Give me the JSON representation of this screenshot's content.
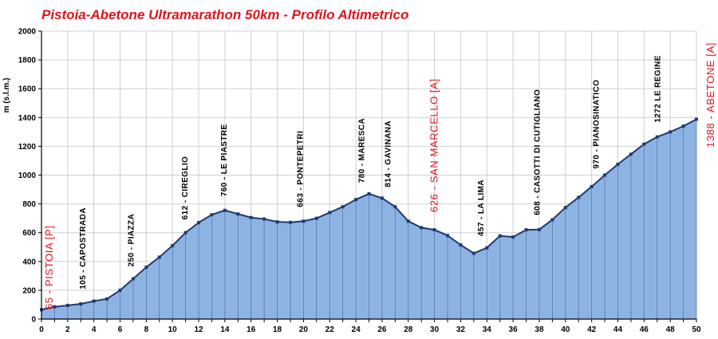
{
  "chart_data": {
    "type": "area",
    "title": "Pistoia-Abetone Ultramarathon 50km - Profilo Altimetrico",
    "ylabel": "m (s.l.m.)",
    "xlabel": "",
    "xlim": [
      0,
      50
    ],
    "ylim": [
      0,
      2000
    ],
    "xticks": [
      0,
      2,
      4,
      6,
      8,
      10,
      12,
      14,
      16,
      18,
      20,
      22,
      24,
      26,
      28,
      30,
      32,
      34,
      36,
      38,
      40,
      42,
      44,
      46,
      48,
      50
    ],
    "yticks": [
      0,
      200,
      400,
      600,
      800,
      1000,
      1200,
      1400,
      1600,
      1800,
      2000
    ],
    "grid": true,
    "x": [
      0,
      1,
      2,
      3,
      4,
      5,
      6,
      7,
      8,
      9,
      10,
      11,
      12,
      13,
      14,
      15,
      16,
      17,
      18,
      19,
      20,
      21,
      22,
      23,
      24,
      25,
      26,
      27,
      28,
      29,
      30,
      31,
      32,
      33,
      34,
      35,
      36,
      37,
      38,
      39,
      40,
      41,
      42,
      43,
      44,
      45,
      46,
      47,
      48,
      49,
      50
    ],
    "y": [
      65,
      85,
      95,
      105,
      125,
      140,
      200,
      280,
      360,
      430,
      510,
      600,
      670,
      725,
      755,
      730,
      705,
      695,
      675,
      672,
      680,
      700,
      740,
      780,
      830,
      870,
      840,
      780,
      680,
      635,
      620,
      580,
      515,
      457,
      495,
      578,
      570,
      620,
      622,
      690,
      775,
      845,
      920,
      1000,
      1075,
      1145,
      1215,
      1265,
      1300,
      1340,
      1388
    ],
    "annotations": [
      {
        "x": 0.6,
        "label": "65 - PISTOIA  [P]",
        "color": "#e0141e",
        "big": true
      },
      {
        "x": 3.1,
        "label": "105 - CAPOSTRADA",
        "color": "#000000",
        "big": false
      },
      {
        "x": 6.8,
        "label": "250 - PIAZZA",
        "color": "#000000",
        "big": false
      },
      {
        "x": 10.9,
        "label": "612 - CIREGLIO",
        "color": "#000000",
        "big": false
      },
      {
        "x": 13.9,
        "label": "760 - LE PIASTRE",
        "color": "#000000",
        "big": false
      },
      {
        "x": 19.7,
        "label": "663 - PONTEPETRI",
        "color": "#000000",
        "big": false
      },
      {
        "x": 24.4,
        "label": "780 - MARESCA",
        "color": "#000000",
        "big": false
      },
      {
        "x": 26.4,
        "label": "814 - GAVINANA",
        "color": "#000000",
        "big": false
      },
      {
        "x": 30.0,
        "label": "626 - SAN MARCELLO  [A]",
        "color": "#e0141e",
        "big": true
      },
      {
        "x": 33.5,
        "label": "457 - LA LIMA",
        "color": "#000000",
        "big": false
      },
      {
        "x": 37.8,
        "label": "608 - CASOTTI DI CUTIGLIANO",
        "color": "#000000",
        "big": false
      },
      {
        "x": 42.3,
        "label": "970 - PIANOSINATICO",
        "color": "#000000",
        "big": false
      },
      {
        "x": 47.0,
        "label": "1272 LE REGINE",
        "color": "#000000",
        "big": false
      },
      {
        "x": 51.1,
        "label": "1388 - ABETONE  [A]",
        "color": "#e0141e",
        "big": true
      }
    ]
  },
  "colors": {
    "title": "#e0141e",
    "fill": "#8db3e2",
    "stroke": "#1f3a73",
    "grid": "#d0d0d0",
    "axis": "#000000"
  }
}
